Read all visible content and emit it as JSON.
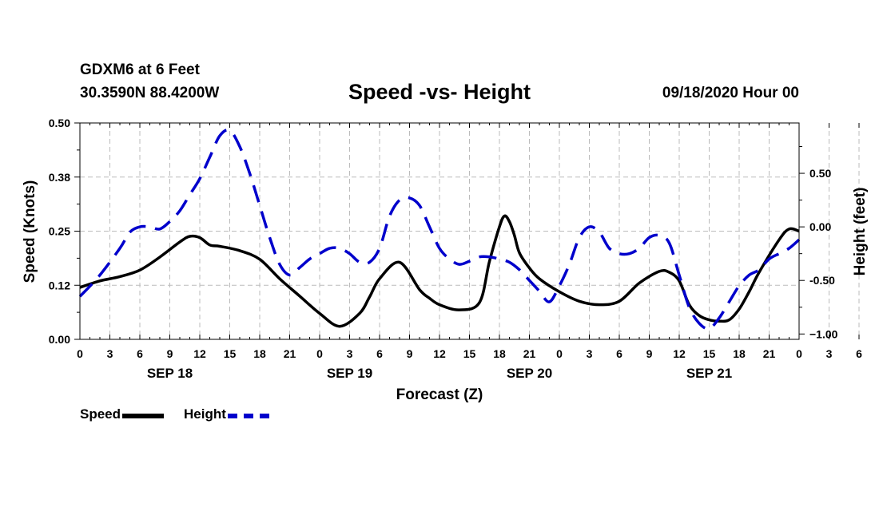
{
  "header": {
    "station": "GDXM6 at 6 Feet",
    "coords": "30.3590N 88.4200W",
    "title": "Speed -vs- Height",
    "datetime": "09/18/2020 Hour 00"
  },
  "colors": {
    "speed": "#000000",
    "height": "#0000cc",
    "grid": "#bbbbbb"
  },
  "chart_data": {
    "type": "line",
    "title": "Speed -vs- Height",
    "xlabel": "Forecast (Z)",
    "ylabel_left": "Speed (Knots)",
    "ylabel_right": "Height (feet)",
    "x_unit": "forecast hour",
    "xlim": [
      0,
      72
    ],
    "ylim_left": [
      0,
      0.5
    ],
    "ylim_right": [
      -1.05,
      0.97
    ],
    "left_ticks": [
      {
        "value": 0.0,
        "label": "0.00"
      },
      {
        "value": 0.125,
        "label": "0.12"
      },
      {
        "value": 0.25,
        "label": "0.25"
      },
      {
        "value": 0.375,
        "label": "0.38"
      },
      {
        "value": 0.5,
        "label": "0.50"
      }
    ],
    "right_ticks": [
      {
        "value": 0.5,
        "label": "0.50"
      },
      {
        "value": 0.0,
        "label": "0.00"
      },
      {
        "value": -0.5,
        "label": "-0.50"
      },
      {
        "value": -1.0,
        "label": "−1.00"
      }
    ],
    "x_tick_labels": [
      "0",
      "3",
      "6",
      "9",
      "12",
      "15",
      "18",
      "21",
      "0",
      "3",
      "6",
      "9",
      "12",
      "15",
      "18",
      "21",
      "0",
      "3",
      "6",
      "9",
      "12",
      "15",
      "18",
      "21",
      "0",
      "3",
      "6",
      "9",
      "12",
      "15",
      "18",
      "21",
      "0"
    ],
    "date_labels": [
      {
        "hour": 9,
        "label": "SEP 18"
      },
      {
        "hour": 27,
        "label": "SEP 19"
      },
      {
        "hour": 45,
        "label": "SEP 20"
      },
      {
        "hour": 63,
        "label": "SEP 21"
      }
    ],
    "grid": true,
    "series": [
      {
        "name": "Speed",
        "axis": "left",
        "style": "solid",
        "x": [
          0,
          2,
          4,
          6,
          8,
          10,
          11,
          12,
          13,
          14,
          16,
          18,
          20,
          22,
          24,
          26,
          28,
          29,
          30,
          32,
          34,
          35,
          36,
          38,
          40,
          41,
          42,
          42.5,
          43,
          43.5,
          44,
          45,
          46,
          48,
          50,
          52,
          54,
          56,
          58,
          59,
          60,
          61,
          62,
          63,
          64,
          65,
          66,
          67,
          68,
          70,
          71,
          72
        ],
        "y": [
          0.12,
          0.135,
          0.145,
          0.16,
          0.19,
          0.225,
          0.238,
          0.235,
          0.218,
          0.215,
          0.205,
          0.185,
          0.14,
          0.1,
          0.06,
          0.03,
          0.06,
          0.098,
          0.14,
          0.178,
          0.115,
          0.095,
          0.08,
          0.068,
          0.085,
          0.18,
          0.26,
          0.285,
          0.272,
          0.24,
          0.2,
          0.165,
          0.14,
          0.11,
          0.088,
          0.08,
          0.088,
          0.13,
          0.157,
          0.155,
          0.135,
          0.08,
          0.055,
          0.045,
          0.042,
          0.045,
          0.07,
          0.11,
          0.155,
          0.23,
          0.255,
          0.25
        ]
      },
      {
        "name": "Height",
        "axis": "right",
        "style": "dashed",
        "x": [
          0,
          2,
          4,
          5,
          6,
          7,
          8,
          9,
          10,
          11,
          12,
          13,
          14,
          15,
          16,
          17,
          18,
          19,
          20,
          21,
          22,
          23,
          24,
          25,
          26,
          27,
          28,
          29,
          30,
          31,
          32,
          33,
          34,
          35,
          36,
          37,
          38,
          39,
          40,
          41,
          42,
          43,
          44,
          45,
          46,
          47,
          48,
          49,
          50,
          51,
          52,
          53,
          54,
          55,
          56,
          57,
          58,
          59,
          60,
          61,
          62,
          63,
          64,
          65,
          66,
          67,
          68,
          69,
          70,
          71,
          72
        ],
        "y": [
          -0.65,
          -0.45,
          -0.2,
          -0.05,
          0.0,
          0.0,
          -0.02,
          0.05,
          0.15,
          0.3,
          0.45,
          0.65,
          0.85,
          0.9,
          0.75,
          0.5,
          0.2,
          -0.1,
          -0.35,
          -0.45,
          -0.38,
          -0.3,
          -0.25,
          -0.2,
          -0.2,
          -0.25,
          -0.33,
          -0.33,
          -0.2,
          0.1,
          0.25,
          0.27,
          0.2,
          0.0,
          -0.2,
          -0.3,
          -0.35,
          -0.32,
          -0.28,
          -0.28,
          -0.3,
          -0.33,
          -0.4,
          -0.5,
          -0.6,
          -0.7,
          -0.55,
          -0.35,
          -0.1,
          0.0,
          -0.05,
          -0.2,
          -0.25,
          -0.25,
          -0.2,
          -0.1,
          -0.08,
          -0.15,
          -0.45,
          -0.75,
          -0.9,
          -0.95,
          -0.85,
          -0.7,
          -0.55,
          -0.45,
          -0.4,
          -0.3,
          -0.25,
          -0.2,
          -0.12
        ]
      }
    ]
  },
  "legend": {
    "speed_label": "Speed",
    "height_label": "Height"
  }
}
